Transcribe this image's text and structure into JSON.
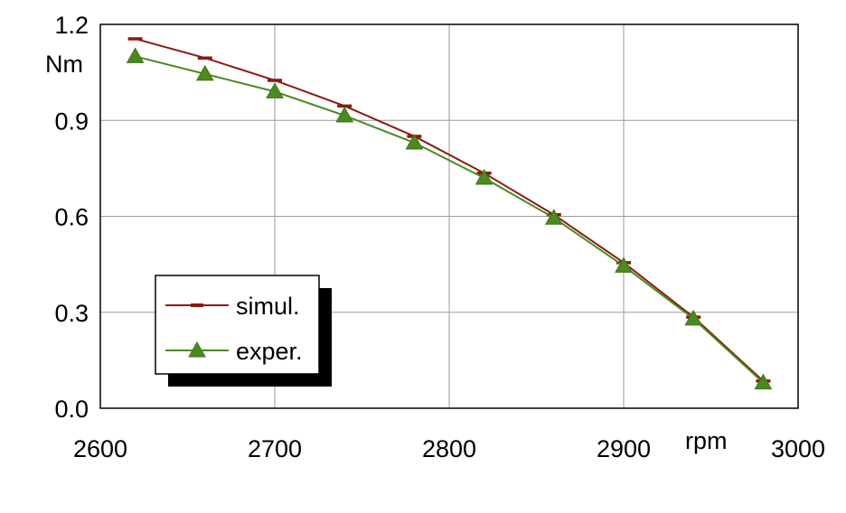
{
  "chart_data": {
    "type": "line",
    "xlabel": "rpm",
    "ylabel": "Nm",
    "xlim": [
      2600,
      3000
    ],
    "ylim": [
      0.0,
      1.2
    ],
    "xticks": [
      "2600",
      "2700",
      "2800",
      "2900",
      "3000"
    ],
    "yticks": [
      "0.0",
      "0.3",
      "0.6",
      "0.9",
      "1.2"
    ],
    "grid": true,
    "legend_position": "bottom-left",
    "x": [
      2620,
      2660,
      2700,
      2740,
      2780,
      2820,
      2860,
      2900,
      2940,
      2980
    ],
    "series": [
      {
        "name": "simul.",
        "marker": "dash",
        "color": "#8b1a10",
        "values": [
          1.155,
          1.095,
          1.025,
          0.945,
          0.85,
          0.735,
          0.605,
          0.455,
          0.285,
          0.085
        ]
      },
      {
        "name": "exper.",
        "marker": "triangle",
        "color": "#4a8a1f",
        "values": [
          1.1,
          1.045,
          0.99,
          0.915,
          0.83,
          0.72,
          0.595,
          0.445,
          0.28,
          0.08
        ]
      }
    ]
  }
}
